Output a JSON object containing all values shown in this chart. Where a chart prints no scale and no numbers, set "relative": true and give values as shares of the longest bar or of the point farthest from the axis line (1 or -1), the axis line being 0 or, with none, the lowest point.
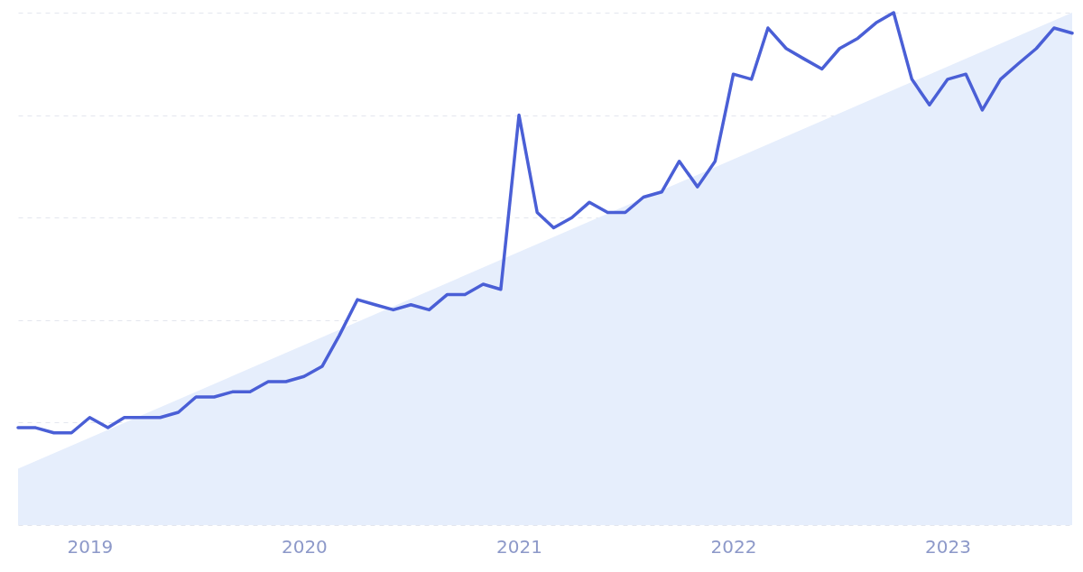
{
  "chart_data": {
    "type": "line",
    "relative": true,
    "grid": "y",
    "xlim": [
      "2018-09",
      "2023-08"
    ],
    "xticks": [
      {
        "value": "2019",
        "label": "2019"
      },
      {
        "value": "2020",
        "label": "2020"
      },
      {
        "value": "2021",
        "label": "2021"
      },
      {
        "value": "2022",
        "label": "2022"
      },
      {
        "value": "2023",
        "label": "2023"
      }
    ],
    "x": [
      "2018-09",
      "2018-10",
      "2018-11",
      "2018-12",
      "2019-01",
      "2019-02",
      "2019-03",
      "2019-04",
      "2019-05",
      "2019-06",
      "2019-07",
      "2019-08",
      "2019-09",
      "2019-10",
      "2019-11",
      "2019-12",
      "2020-01",
      "2020-02",
      "2020-03",
      "2020-04",
      "2020-05",
      "2020-06",
      "2020-07",
      "2020-08",
      "2020-09",
      "2020-10",
      "2020-11",
      "2020-12",
      "2021-01",
      "2021-02",
      "2021-03",
      "2021-04",
      "2021-05",
      "2021-06",
      "2021-07",
      "2021-08",
      "2021-09",
      "2021-10",
      "2021-11",
      "2021-12",
      "2022-01",
      "2022-02",
      "2022-03",
      "2022-04",
      "2022-05",
      "2022-06",
      "2022-07",
      "2022-08",
      "2022-09",
      "2022-10",
      "2022-11",
      "2022-12",
      "2023-01",
      "2023-02",
      "2023-03",
      "2023-04",
      "2023-05",
      "2023-06",
      "2023-07",
      "2023-08"
    ],
    "series": [
      {
        "type": "area",
        "color": "#e6eefc",
        "x": [
          "2018-09",
          "2023-08"
        ],
        "values": [
          0.11,
          1
        ]
      },
      {
        "color": "#4a5fd6",
        "values": [
          0.19,
          0.19,
          0.18,
          0.18,
          0.21,
          0.19,
          0.21,
          0.21,
          0.21,
          0.22,
          0.25,
          0.25,
          0.26,
          0.26,
          0.28,
          0.28,
          0.29,
          0.31,
          0.37,
          0.44,
          0.43,
          0.42,
          0.43,
          0.42,
          0.45,
          0.45,
          0.47,
          0.46,
          0.8,
          0.61,
          0.58,
          0.6,
          0.63,
          0.61,
          0.61,
          0.64,
          0.65,
          0.71,
          0.66,
          0.71,
          0.88,
          0.87,
          0.97,
          0.93,
          0.91,
          0.89,
          0.93,
          0.95,
          0.98,
          1,
          0.87,
          0.82,
          0.87,
          0.88,
          0.81,
          0.87,
          0.9,
          0.93,
          0.97,
          0.96
        ]
      }
    ]
  }
}
